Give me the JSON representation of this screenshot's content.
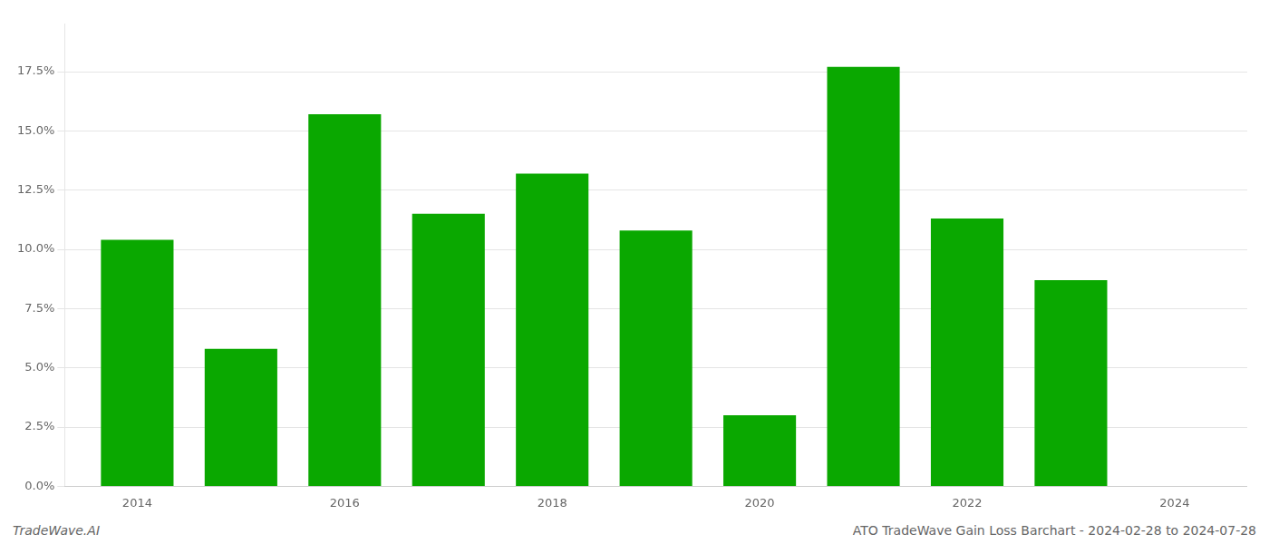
{
  "chart_data": {
    "type": "bar",
    "x": [
      2014,
      2015,
      2016,
      2017,
      2018,
      2019,
      2020,
      2021,
      2022,
      2023
    ],
    "values": [
      0.104,
      0.058,
      0.157,
      0.115,
      0.132,
      0.108,
      0.03,
      0.177,
      0.113,
      0.087
    ],
    "color": "#0aa800",
    "xlim": [
      2013.3,
      2024.7
    ],
    "xticks": [
      2014,
      2016,
      2018,
      2020,
      2022,
      2024
    ],
    "ylim": [
      0,
      0.195
    ],
    "yticks": [
      {
        "value": 0.0,
        "label": "0.0%"
      },
      {
        "value": 0.025,
        "label": "2.5%"
      },
      {
        "value": 0.05,
        "label": "5.0%"
      },
      {
        "value": 0.075,
        "label": "7.5%"
      },
      {
        "value": 0.1,
        "label": "10.0%"
      },
      {
        "value": 0.125,
        "label": "12.5%"
      },
      {
        "value": 0.15,
        "label": "15.0%"
      },
      {
        "value": 0.175,
        "label": "17.5%"
      }
    ],
    "grid": true,
    "annotations": [
      "TradeWave.AI",
      "ATO TradeWave Gain Loss Barchart - 2024-02-28 to 2024-07-28"
    ]
  }
}
